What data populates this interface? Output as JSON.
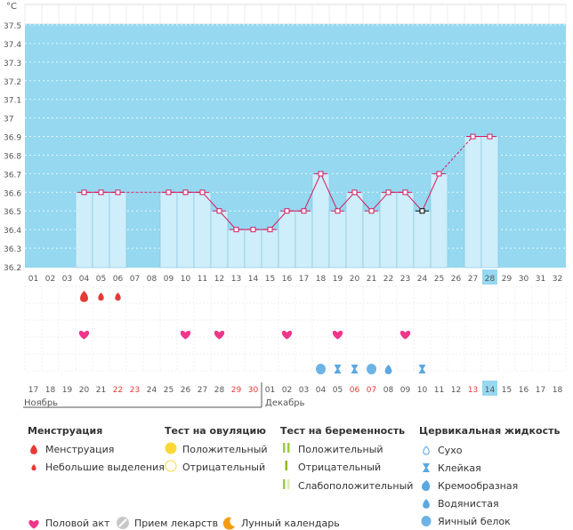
{
  "chart_data": {
    "type": "bar",
    "unit_label": "°С",
    "ylim": [
      36.2,
      37.5
    ],
    "yticks": [
      "36.2",
      "36.3",
      "36.4",
      "36.5",
      "36.6",
      "36.7",
      "36.8",
      "36.9",
      "37",
      "37.1",
      "37.2",
      "37.3",
      "37.4",
      "37.5"
    ],
    "cycle_days": [
      "01",
      "02",
      "03",
      "04",
      "05",
      "06",
      "07",
      "08",
      "09",
      "10",
      "11",
      "12",
      "13",
      "14",
      "15",
      "16",
      "17",
      "18",
      "19",
      "20",
      "21",
      "22",
      "23",
      "24",
      "25",
      "26",
      "27",
      "28",
      "29",
      "30",
      "31",
      "32"
    ],
    "highlight_cycle_day": "28",
    "temperatures": [
      null,
      null,
      null,
      36.6,
      36.6,
      36.6,
      null,
      null,
      36.6,
      36.6,
      36.6,
      36.5,
      36.4,
      36.4,
      36.4,
      36.5,
      36.5,
      36.7,
      36.5,
      36.6,
      36.5,
      36.6,
      36.6,
      36.5,
      36.7,
      null,
      36.9,
      36.9,
      null,
      null,
      null,
      null
    ],
    "dashed_segments": [
      [
        5,
        8
      ],
      [
        24,
        26
      ]
    ],
    "black_marker_day": "24",
    "dates": [
      "17",
      "18",
      "19",
      "20",
      "21",
      "22",
      "23",
      "24",
      "25",
      "26",
      "27",
      "28",
      "29",
      "30",
      "01",
      "02",
      "03",
      "04",
      "05",
      "06",
      "07",
      "08",
      "09",
      "10",
      "11",
      "12",
      "13",
      "14",
      "15",
      "16",
      "17",
      "18"
    ],
    "red_dates": [
      "22",
      "23",
      "29",
      "30",
      "06",
      "07",
      "13"
    ],
    "highlight_date": "14",
    "month_start": "Ноябрь",
    "month_next": "Декабрь",
    "menstruation": [
      [
        "04",
        "large"
      ],
      [
        "05",
        "small"
      ],
      [
        "06",
        "small"
      ]
    ],
    "intercourse": [
      "04",
      "10",
      "12",
      "16",
      "19",
      "23"
    ],
    "cervical": [
      [
        "18",
        "egg-white"
      ],
      [
        "19",
        "sticky"
      ],
      [
        "20",
        "sticky"
      ],
      [
        "21",
        "egg-white"
      ],
      [
        "22",
        "watery"
      ],
      [
        "24",
        "sticky"
      ]
    ]
  },
  "legend": {
    "menstruation": {
      "title": "Менструация",
      "items": [
        "Менструация",
        "Небольшие выделения"
      ],
      "color": "#e53935"
    },
    "ovulation": {
      "title": "Тест на овуляцию",
      "items": [
        "Положительный",
        "Отрицательный"
      ],
      "color": "#fdd835"
    },
    "pregnancy": {
      "title": "Тест на беременность",
      "items": [
        "Положительный",
        "Отрицательный",
        "Слабоположительный"
      ],
      "color": "#9ccc3c"
    },
    "cervical": {
      "title": "Цервикальная жидкость",
      "items": [
        "Сухо",
        "Клейкая",
        "Кремообразная",
        "Водянистая",
        "Яичный белок"
      ],
      "color": "#5ba8e0"
    },
    "bottom": {
      "items": [
        "Половой акт",
        "Прием лекарств",
        "Лунный календарь"
      ]
    }
  },
  "colors": {
    "band": "#95d8f0",
    "bar": "#cdeefa",
    "bar_border": "#82c4e0",
    "line": "#d81b60",
    "heart": "#f0368a",
    "red_text": "#e53935"
  }
}
